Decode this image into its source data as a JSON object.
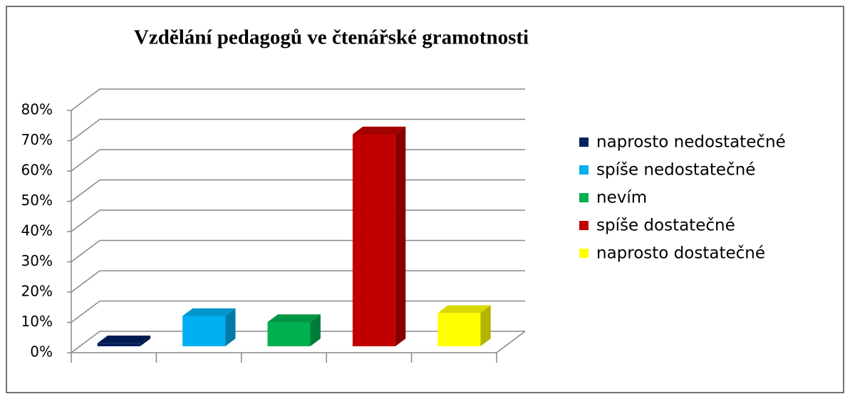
{
  "chart_data": {
    "type": "bar3d",
    "title": "Vzdělání pedagogů ve čtenářské gramotnosti",
    "categories": [
      "naprosto nedostatečné",
      "spíše nedostatečné",
      "nevím",
      "spíše dostatečné",
      "naprosto dostatečné"
    ],
    "values": [
      1,
      10,
      8,
      70,
      11
    ],
    "colors": [
      "#002060",
      "#00b0f0",
      "#00b050",
      "#c00000",
      "#ffff00"
    ],
    "ylim": [
      0,
      80
    ],
    "yticks": [
      {
        "value": 0,
        "label": "0%"
      },
      {
        "value": 10,
        "label": "10%"
      },
      {
        "value": 20,
        "label": "20%"
      },
      {
        "value": 30,
        "label": "30%"
      },
      {
        "value": 40,
        "label": "40%"
      },
      {
        "value": 50,
        "label": "50%"
      },
      {
        "value": 60,
        "label": "60%"
      },
      {
        "value": 70,
        "label": "70%"
      },
      {
        "value": 80,
        "label": "80%"
      }
    ],
    "grid": true,
    "legend": "right"
  }
}
